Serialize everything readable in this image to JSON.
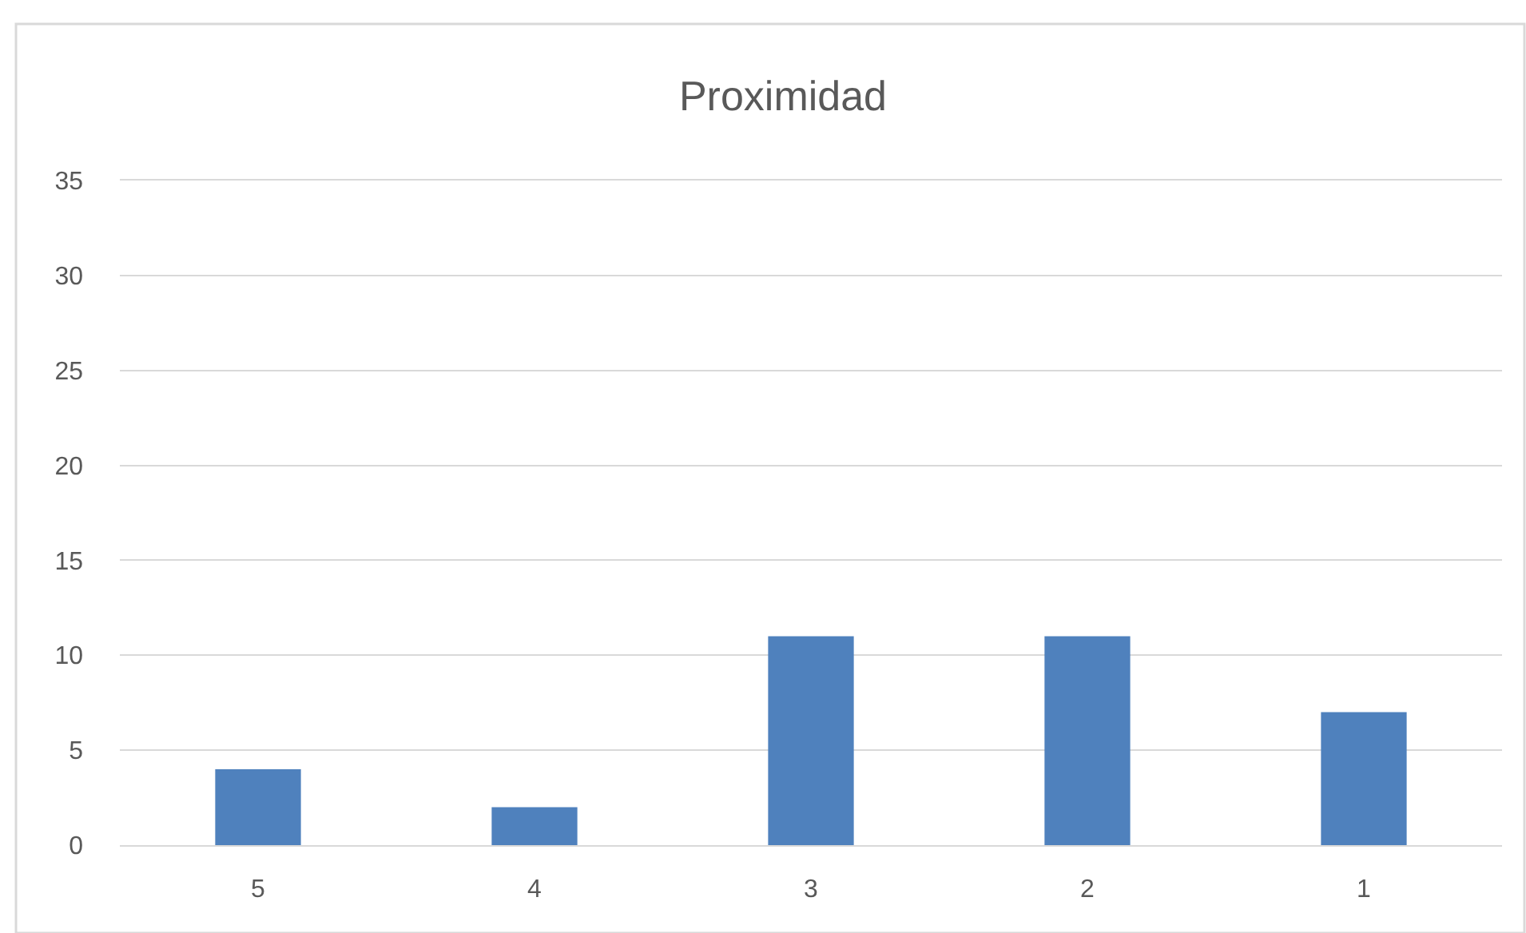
{
  "chart_data": {
    "type": "bar",
    "title": "Proximidad",
    "categories": [
      "5",
      "4",
      "3",
      "2",
      "1"
    ],
    "values": [
      4,
      2,
      11,
      11,
      7
    ],
    "color": "#4f81bd",
    "ylim": [
      0,
      35
    ],
    "yticks": [
      0,
      5,
      10,
      15,
      20,
      25,
      30,
      35
    ],
    "grid": "y"
  }
}
